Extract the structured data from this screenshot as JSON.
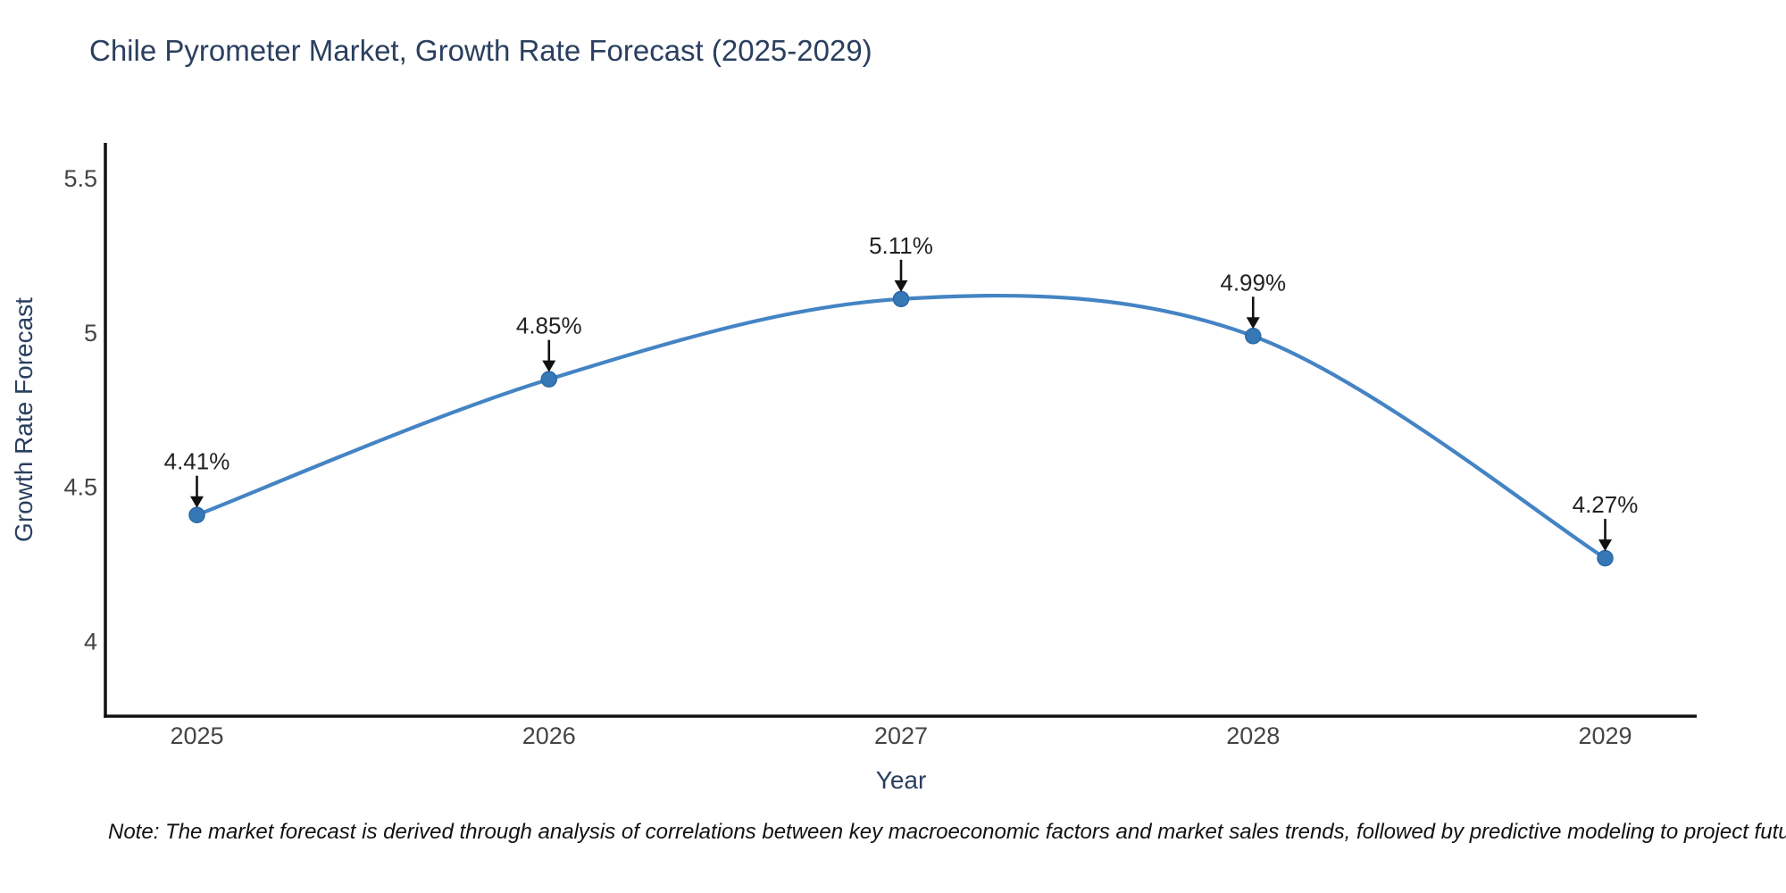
{
  "title": "Chile Pyrometer Market, Growth Rate Forecast (2025-2029)",
  "note": "Note: The market forecast is derived through analysis of correlations between key macroeconomic factors and market sales trends, followed by predictive modeling to project future sales",
  "chart_data": {
    "type": "line",
    "title": "Chile Pyrometer Market, Growth Rate Forecast (2025-2029)",
    "xlabel": "Year",
    "ylabel": "Growth Rate Forecast",
    "x": [
      2025,
      2026,
      2027,
      2028,
      2029
    ],
    "series": [
      {
        "name": "Growth Rate Forecast",
        "values": [
          4.41,
          4.85,
          5.11,
          4.99,
          4.27
        ]
      }
    ],
    "point_labels": [
      "4.41%",
      "4.85%",
      "5.11%",
      "4.99%",
      "4.27%"
    ],
    "xticks": [
      "2025",
      "2026",
      "2027",
      "2028",
      "2029"
    ],
    "yticks": [
      4,
      4.5,
      5,
      5.5
    ],
    "x_range": [
      2024.74,
      2029.26
    ],
    "y_range": [
      3.758,
      5.616
    ],
    "line_shape": "spline",
    "grid": false,
    "legend_position": "none",
    "annotations_arrow": "down",
    "colors": {
      "line": "#4484c4",
      "marker": "#3678b6",
      "marker_edge": "#2d68a6",
      "axis_line": "#111111",
      "tick_label": "#444444",
      "axis_title": "#2a3f5f",
      "chart_title": "#2a3f5f",
      "annotation_text": "#222222",
      "annotation_arrow": "#111111",
      "background": "#ffffff"
    }
  }
}
